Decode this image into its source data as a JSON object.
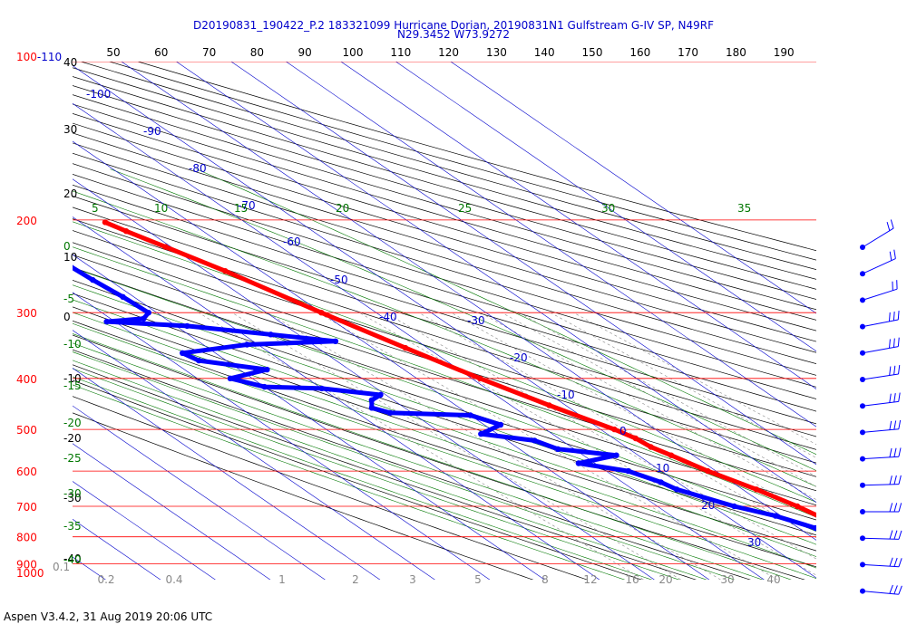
{
  "header": {
    "line1": "D20190831_190422_P.2 183321099 Hurricane Dorian, 20190831N1 Gulfstream G-IV SP, N49RF",
    "line2": "N29.3452 W73.9272"
  },
  "footer": "Aspen V3.4.2, 31 Aug 2019  20:06 UTC",
  "colors": {
    "temperature": "#ff0000",
    "dewpoint": "#0000ff",
    "isobar": "#ff0000",
    "isotherm": "#0000cc",
    "dry_adiabat": "#000000",
    "moist_adiabat": "#007700",
    "mixing_ratio": "#888888"
  },
  "chart_data": {
    "type": "skew-t log-p sounding",
    "pressure_axis_labels": [
      "100-110",
      "200",
      "300",
      "400",
      "500",
      "600",
      "700",
      "800",
      "900",
      "1000"
    ],
    "top_axis_labels": [
      "50",
      "60",
      "70",
      "80",
      "90",
      "100",
      "110",
      "120",
      "130",
      "140",
      "150",
      "160",
      "170",
      "180",
      "190"
    ],
    "isotherm_labels": [
      "-100",
      "-90",
      "-80",
      "-70",
      "-60",
      "-50",
      "-40",
      "-30",
      "-20",
      "-10",
      "0",
      "10",
      "20",
      "30"
    ],
    "moist_adiabat_labels": [
      "5",
      "10",
      "15",
      "20",
      "25",
      "30",
      "35"
    ],
    "left_dry_labels": [
      "40",
      "30",
      "20",
      "10",
      "0",
      "-10",
      "-20",
      "-30",
      "-40"
    ],
    "left_green_labels": [
      "0",
      "-5",
      "-10",
      "-15",
      "-20",
      "-25",
      "-30",
      "-35",
      "-40"
    ],
    "mixing_ratio_labels": [
      "0.1",
      "0.2",
      "0.4",
      "1",
      "2",
      "3",
      "5",
      "8",
      "12",
      "16",
      "20",
      "30",
      "40"
    ],
    "temperature": [
      [
        202,
        -45.5
      ],
      [
        210,
        -44
      ],
      [
        225,
        -41
      ],
      [
        250,
        -36.5
      ],
      [
        300,
        -30
      ],
      [
        350,
        -24
      ],
      [
        400,
        -18.5
      ],
      [
        450,
        -13
      ],
      [
        500,
        -7.5
      ],
      [
        520,
        -6
      ],
      [
        540,
        -5.5
      ],
      [
        560,
        -4
      ],
      [
        600,
        -1.5
      ],
      [
        650,
        2.5
      ],
      [
        700,
        5.5
      ],
      [
        750,
        7.5
      ],
      [
        800,
        9
      ],
      [
        830,
        10
      ],
      [
        850,
        12
      ],
      [
        900,
        16
      ],
      [
        950,
        20.5
      ],
      [
        1000,
        25.5
      ],
      [
        1012,
        27
      ]
    ],
    "dewpoint": [
      [
        245,
        -63.5
      ],
      [
        260,
        -63
      ],
      [
        280,
        -62
      ],
      [
        300,
        -61.5
      ],
      [
        308,
        -64
      ],
      [
        312,
        -71.5
      ],
      [
        318,
        -58
      ],
      [
        330,
        -45
      ],
      [
        340,
        -35
      ],
      [
        345,
        -52
      ],
      [
        358,
        -66
      ],
      [
        370,
        -65
      ],
      [
        385,
        -55
      ],
      [
        400,
        -64
      ],
      [
        415,
        -60
      ],
      [
        418,
        -50
      ],
      [
        430,
        -41
      ],
      [
        440,
        -44
      ],
      [
        455,
        -46
      ],
      [
        465,
        -44
      ],
      [
        470,
        -30
      ],
      [
        490,
        -27
      ],
      [
        510,
        -33
      ],
      [
        525,
        -25
      ],
      [
        545,
        -23
      ],
      [
        560,
        -14
      ],
      [
        580,
        -23
      ],
      [
        600,
        -16
      ],
      [
        630,
        -13
      ],
      [
        650,
        -12
      ],
      [
        700,
        -6
      ],
      [
        730,
        -1
      ],
      [
        770,
        3
      ],
      [
        800,
        4
      ],
      [
        830,
        6
      ],
      [
        860,
        7
      ],
      [
        900,
        11
      ],
      [
        930,
        14
      ],
      [
        960,
        18
      ],
      [
        990,
        20.5
      ],
      [
        1005,
        22
      ]
    ]
  }
}
